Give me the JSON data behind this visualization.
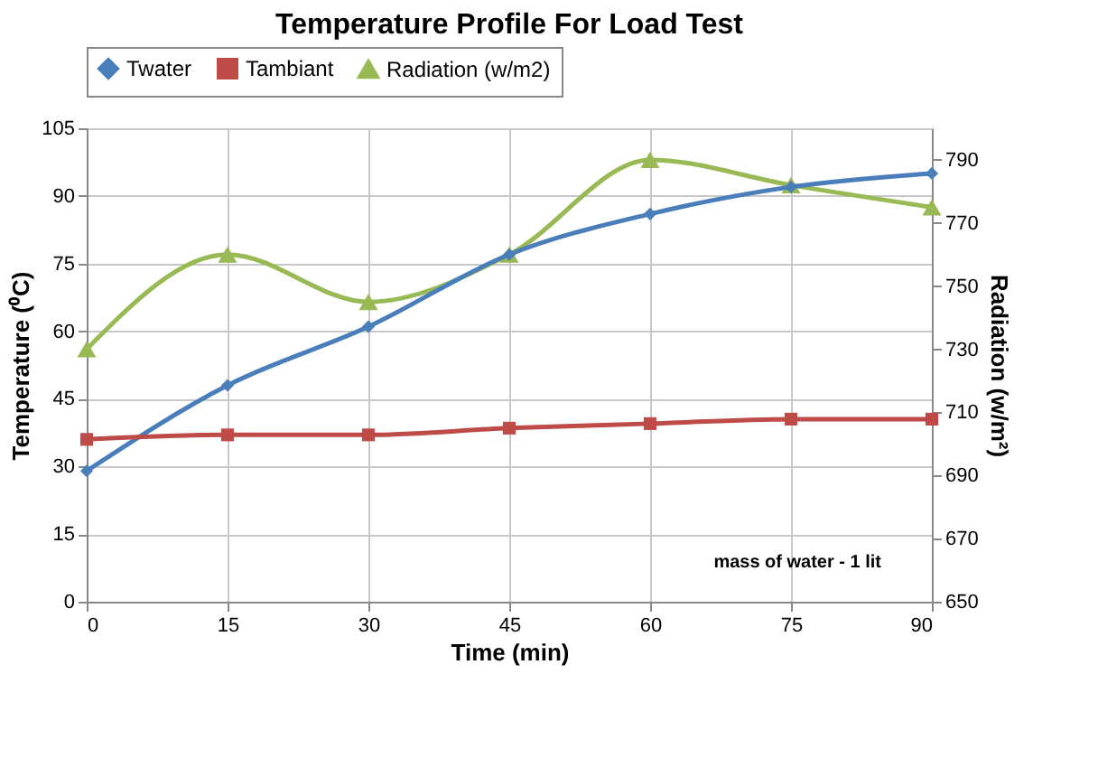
{
  "chart_data": {
    "type": "line",
    "title": "Temperature Profile For Load Test",
    "xlabel": "Time (min)",
    "ylabel": "Temperature (⁰C)",
    "y2label": "Radiation (w/m²)",
    "x": [
      0,
      15,
      30,
      45,
      60,
      75,
      90
    ],
    "series": [
      {
        "name": "Twater",
        "color": "#4a7ebb",
        "marker": "diamond",
        "values": [
          29,
          48,
          61,
          77,
          86,
          92,
          95
        ]
      },
      {
        "name": "Tambiant",
        "color": "#be4b48",
        "marker": "square",
        "values": [
          36,
          37,
          37,
          38.5,
          39.5,
          40.5,
          40.5
        ]
      },
      {
        "name": "Radiation (w/m2)",
        "color": "#98b954",
        "marker": "triangle",
        "axis": "y2",
        "values": [
          730,
          760,
          745,
          760,
          790,
          782,
          775
        ]
      }
    ],
    "xlim": [
      0,
      90
    ],
    "xticks": [
      0,
      15,
      30,
      45,
      60,
      75,
      90
    ],
    "ylim": [
      0,
      105
    ],
    "yticks": [
      0,
      15,
      30,
      45,
      60,
      75,
      90,
      105
    ],
    "y2lim": [
      650,
      800
    ],
    "y2ticks": [
      650,
      670,
      690,
      710,
      730,
      750,
      770,
      790
    ],
    "grid": true,
    "legend": "top",
    "annotations": [
      "mass of water - 1 lit"
    ]
  }
}
